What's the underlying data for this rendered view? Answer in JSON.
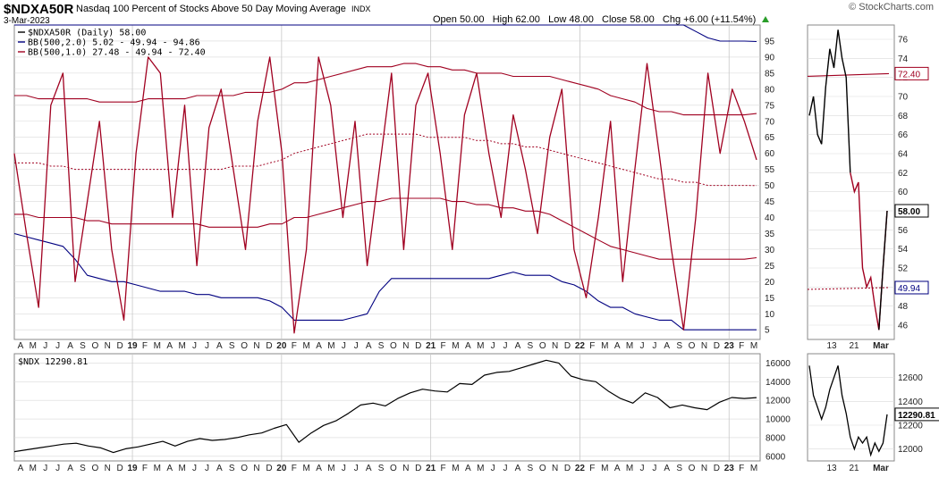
{
  "header": {
    "symbol": "$NDXA50R",
    "description": "Nasdaq 100 Percent of Stocks Above 50 Day Moving Average",
    "exchange": "INDX",
    "date": "3-Mar-2023",
    "open_label": "Open",
    "open": "50.00",
    "high_label": "High",
    "high": "62.00",
    "low_label": "Low",
    "low": "48.00",
    "close_label": "Close",
    "close": "58.00",
    "chg_label": "Chg",
    "chg": "+6.00 (+11.54%)",
    "brand": "© StockCharts.com"
  },
  "colors": {
    "price": "#000000",
    "bb2": "#000080",
    "bb1": "#a00020",
    "grid": "#d9d9d9"
  },
  "chart_data": [
    {
      "type": "line",
      "title": "$NDXA50R (Daily) 58.00",
      "legend": [
        "$NDXA50R (Daily) 58.00",
        "BB(500,2.0) 5.02 - 49.94 - 94.86",
        "BB(500,1.0) 27.48 - 49.94 - 72.40"
      ],
      "y_ticks": [
        5,
        10,
        15,
        20,
        25,
        30,
        35,
        40,
        45,
        50,
        55,
        60,
        65,
        70,
        75,
        80,
        85,
        90,
        95
      ],
      "ylim": [
        2,
        100
      ],
      "last_value_label": "58.00",
      "band_labels": [
        "72.40",
        "49.94"
      ],
      "x_month_labels": [
        "A",
        "M",
        "J",
        "J",
        "A",
        "S",
        "O",
        "N",
        "D",
        "19",
        "F",
        "M",
        "A",
        "M",
        "J",
        "J",
        "A",
        "S",
        "O",
        "N",
        "D",
        "20",
        "F",
        "M",
        "A",
        "M",
        "J",
        "J",
        "A",
        "S",
        "O",
        "N",
        "D",
        "21",
        "F",
        "M",
        "A",
        "M",
        "J",
        "J",
        "A",
        "S",
        "O",
        "N",
        "D",
        "22",
        "F",
        "M",
        "A",
        "M",
        "J",
        "J",
        "A",
        "S",
        "O",
        "N",
        "D",
        "23",
        "F",
        "M"
      ],
      "series": [
        {
          "name": "$NDXA50R",
          "values": [
            60,
            35,
            12,
            75,
            85,
            20,
            45,
            70,
            30,
            8,
            60,
            90,
            85,
            40,
            75,
            25,
            68,
            80,
            55,
            30,
            70,
            90,
            60,
            4,
            30,
            90,
            75,
            40,
            70,
            25,
            55,
            85,
            30,
            75,
            85,
            60,
            30,
            72,
            85,
            60,
            40,
            72,
            55,
            35,
            65,
            80,
            30,
            15,
            40,
            70,
            20,
            55,
            88,
            60,
            30,
            5,
            40,
            85,
            60,
            80,
            70,
            58
          ]
        },
        {
          "name": "BB(500,2.0) upper",
          "values": [
            100,
            100,
            100,
            100,
            100,
            100,
            100,
            100,
            100,
            100,
            100,
            100,
            100,
            100,
            100,
            100,
            100,
            100,
            100,
            100,
            100,
            100,
            100,
            100,
            100,
            100,
            100,
            100,
            100,
            100,
            100,
            100,
            100,
            100,
            100,
            100,
            100,
            100,
            100,
            100,
            100,
            100,
            100,
            100,
            100,
            100,
            100,
            100,
            100,
            100,
            100,
            100,
            100,
            100,
            100,
            100,
            98,
            96,
            95,
            95,
            95,
            94.86
          ]
        },
        {
          "name": "BB(500,2.0) lower",
          "values": [
            35,
            34,
            33,
            32,
            31,
            27,
            22,
            21,
            20,
            20,
            19,
            18,
            17,
            17,
            17,
            16,
            16,
            15,
            15,
            15,
            15,
            14,
            12,
            8,
            8,
            8,
            8,
            8,
            9,
            10,
            17,
            21,
            21,
            21,
            21,
            21,
            21,
            21,
            21,
            21,
            22,
            23,
            22,
            22,
            22,
            20,
            19,
            17,
            14,
            12,
            12,
            10,
            9,
            8,
            8,
            5,
            5,
            5,
            5,
            5,
            5,
            5.02
          ]
        },
        {
          "name": "BB(500,1.0) upper",
          "values": [
            78,
            78,
            77,
            77,
            77,
            77,
            77,
            76,
            76,
            76,
            76,
            77,
            77,
            77,
            77,
            78,
            78,
            78,
            78,
            79,
            79,
            79,
            80,
            82,
            82,
            83,
            84,
            85,
            86,
            87,
            87,
            87,
            88,
            88,
            87,
            87,
            86,
            86,
            85,
            85,
            85,
            84,
            84,
            84,
            84,
            83,
            82,
            81,
            80,
            78,
            77,
            76,
            74,
            73,
            73,
            72,
            72,
            72,
            72,
            72,
            72,
            72.4
          ]
        },
        {
          "name": "BB(500,1.0) middle",
          "values": [
            57,
            57,
            57,
            56,
            56,
            55,
            55,
            55,
            55,
            55,
            55,
            55,
            55,
            55,
            55,
            55,
            55,
            55,
            56,
            56,
            56,
            57,
            58,
            60,
            61,
            62,
            63,
            64,
            65,
            66,
            66,
            66,
            66,
            66,
            65,
            65,
            65,
            65,
            64,
            64,
            63,
            63,
            62,
            62,
            61,
            60,
            59,
            58,
            57,
            56,
            55,
            54,
            53,
            52,
            52,
            51,
            51,
            50,
            50,
            50,
            50,
            49.94
          ]
        },
        {
          "name": "BB(500,1.0) lower",
          "values": [
            41,
            41,
            40,
            40,
            40,
            40,
            39,
            39,
            38,
            38,
            38,
            38,
            38,
            38,
            38,
            38,
            37,
            37,
            37,
            37,
            37,
            38,
            38,
            40,
            40,
            41,
            42,
            43,
            44,
            45,
            45,
            46,
            46,
            46,
            46,
            46,
            45,
            45,
            44,
            44,
            43,
            43,
            42,
            42,
            41,
            39,
            37,
            35,
            33,
            31,
            30,
            29,
            28,
            27,
            27,
            27,
            27,
            27,
            27,
            27,
            27,
            27.48
          ]
        }
      ],
      "zoom": {
        "x_labels": [
          "13",
          "21",
          "Mar"
        ],
        "y_ticks": [
          46,
          48,
          50,
          52,
          54,
          56,
          58,
          60,
          62,
          64,
          66,
          68,
          70,
          72,
          74,
          76
        ],
        "ylim": [
          44.5,
          77.5
        ],
        "price": [
          68,
          70,
          66,
          65,
          71,
          75,
          73,
          77,
          74,
          72,
          62,
          60,
          61,
          52,
          50,
          51,
          48,
          45.5,
          52,
          58
        ],
        "bb_upper_1": 72.4,
        "bb_middle": 49.94
      }
    },
    {
      "type": "line",
      "title": "$NDX 12290.81",
      "legend": [
        "$NDX 12290.81"
      ],
      "y_ticks": [
        6000,
        8000,
        10000,
        12000,
        14000,
        16000
      ],
      "ylim": [
        5500,
        17000
      ],
      "last_value_label": "12290.81",
      "x_month_labels": [
        "A",
        "M",
        "J",
        "J",
        "A",
        "S",
        "O",
        "N",
        "D",
        "19",
        "F",
        "M",
        "A",
        "M",
        "J",
        "J",
        "A",
        "S",
        "O",
        "N",
        "D",
        "20",
        "F",
        "M",
        "A",
        "M",
        "J",
        "J",
        "A",
        "S",
        "O",
        "N",
        "D",
        "21",
        "F",
        "M",
        "A",
        "M",
        "J",
        "J",
        "A",
        "S",
        "O",
        "N",
        "D",
        "22",
        "F",
        "M",
        "A",
        "M",
        "J",
        "J",
        "A",
        "S",
        "O",
        "N",
        "D",
        "23",
        "F",
        "M"
      ],
      "series": [
        {
          "name": "$NDX",
          "values": [
            6500,
            6700,
            6900,
            7100,
            7300,
            7400,
            7100,
            6900,
            6400,
            6800,
            7000,
            7300,
            7600,
            7100,
            7600,
            7900,
            7700,
            7800,
            8000,
            8300,
            8500,
            9000,
            9400,
            7500,
            8500,
            9300,
            9800,
            10600,
            11500,
            11700,
            11400,
            12200,
            12800,
            13200,
            13000,
            12900,
            13800,
            13700,
            14700,
            15000,
            15100,
            15500,
            15900,
            16300,
            16000,
            14600,
            14200,
            14000,
            13000,
            12200,
            11700,
            12800,
            12300,
            11200,
            11500,
            11200,
            11000,
            11800,
            12300,
            12200,
            12290.81
          ]
        }
      ],
      "zoom": {
        "x_labels": [
          "13",
          "21",
          "Mar"
        ],
        "y_ticks": [
          12000,
          12200,
          12400,
          12600
        ],
        "ylim": [
          11900,
          12800
        ],
        "price": [
          12700,
          12450,
          12350,
          12250,
          12350,
          12500,
          12600,
          12700,
          12450,
          12300,
          12100,
          12000,
          12100,
          12050,
          12100,
          11950,
          12050,
          11980,
          12050,
          12290.81
        ]
      }
    }
  ]
}
